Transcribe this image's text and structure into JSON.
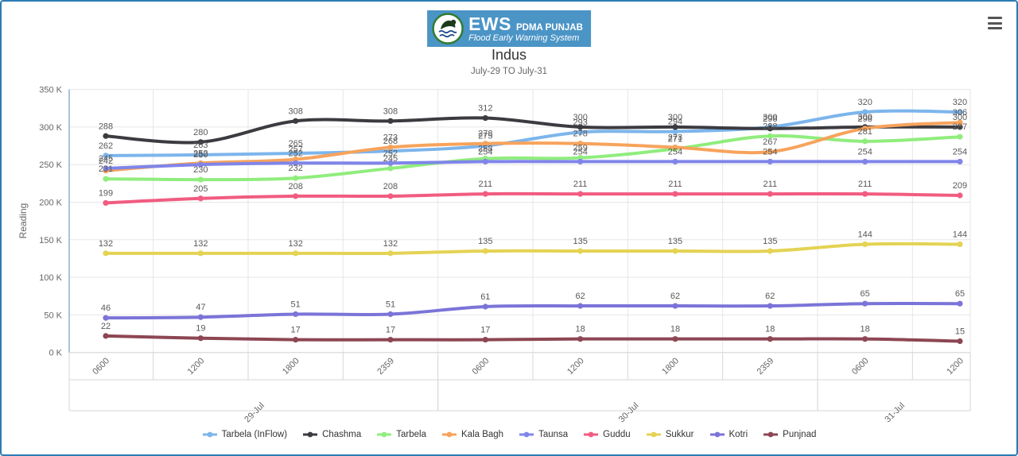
{
  "header": {
    "logo_icon": "pdma-emblem-icon",
    "logo_main": "EWS",
    "logo_org": "PDMA PUNJAB",
    "logo_tagline": "Flood Early Warning System",
    "banner_color": "#4b94c6"
  },
  "toolbar": {
    "context_menu_icon": "hamburger-icon"
  },
  "chart_data": {
    "type": "line",
    "title": "Indus",
    "subtitle": "July-29 TO July-31",
    "ylabel": "Reading",
    "y_unit": "K (thousands)",
    "ylim_k": [
      0,
      350
    ],
    "ytick_step_k": 50,
    "ytick_labels": [
      "0 K",
      "50 K",
      "100 K",
      "150 K",
      "200 K",
      "250 K",
      "300 K",
      "350 K"
    ],
    "grid": true,
    "legend_position": "bottom",
    "x_time_labels": [
      "0600",
      "1200",
      "1800",
      "2359",
      "0600",
      "1200",
      "1800",
      "2359",
      "0600",
      "1200"
    ],
    "x_groups": [
      {
        "label": "29-Jul",
        "span": 4
      },
      {
        "label": "30-Jul",
        "span": 4
      },
      {
        "label": "31-Jul",
        "span": 2
      }
    ],
    "series": [
      {
        "name": "Tarbela (InFlow)",
        "color": "#7cb5ec",
        "values": [
          262,
          263,
          265,
          268,
          275,
          293,
          294,
          300,
          320,
          320
        ]
      },
      {
        "name": "Chashma",
        "color": "#3b3b40",
        "values": [
          288,
          280,
          308,
          308,
          312,
          300,
          300,
          298,
          300,
          300
        ]
      },
      {
        "name": "Tarbela",
        "color": "#90ed7d",
        "values": [
          231,
          230,
          232,
          245,
          258,
          259,
          271,
          288,
          281,
          287
        ]
      },
      {
        "name": "Kala Bagh",
        "color": "#f7a35c",
        "values": [
          242,
          252,
          257,
          273,
          278,
          278,
          273,
          267,
          298,
          306
        ]
      },
      {
        "name": "Taunsa",
        "color": "#8085e9",
        "values": [
          245,
          250,
          252,
          252,
          254,
          254,
          254,
          254,
          254,
          254
        ]
      },
      {
        "name": "Guddu",
        "color": "#f15c80",
        "values": [
          199,
          205,
          208,
          208,
          211,
          211,
          211,
          211,
          211,
          209
        ]
      },
      {
        "name": "Sukkur",
        "color": "#e4d354",
        "values": [
          132,
          132,
          132,
          132,
          135,
          135,
          135,
          135,
          144,
          144
        ]
      },
      {
        "name": "Kotri",
        "color": "#7b74d8",
        "values": [
          46,
          47,
          51,
          51,
          61,
          62,
          62,
          62,
          65,
          65
        ]
      },
      {
        "name": "Punjnad",
        "color": "#8d4653",
        "values": [
          22,
          19,
          17,
          17,
          17,
          18,
          18,
          18,
          18,
          15
        ]
      }
    ]
  }
}
